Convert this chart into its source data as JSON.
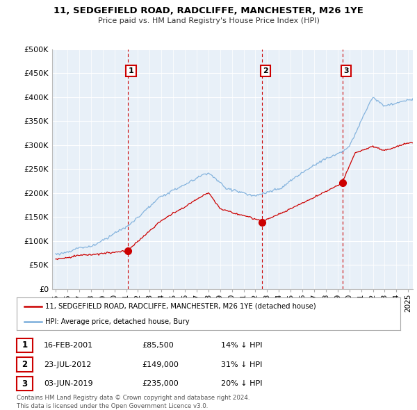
{
  "title": "11, SEDGEFIELD ROAD, RADCLIFFE, MANCHESTER, M26 1YE",
  "subtitle": "Price paid vs. HM Land Registry's House Price Index (HPI)",
  "ylabel_ticks": [
    "£0",
    "£50K",
    "£100K",
    "£150K",
    "£200K",
    "£250K",
    "£300K",
    "£350K",
    "£400K",
    "£450K",
    "£500K"
  ],
  "ytick_vals": [
    0,
    50000,
    100000,
    150000,
    200000,
    250000,
    300000,
    350000,
    400000,
    450000,
    500000
  ],
  "xlim_start": 1994.7,
  "xlim_end": 2025.4,
  "ylim": [
    0,
    500000
  ],
  "sale_color": "#cc0000",
  "hpi_color": "#7aaddb",
  "plot_bg": "#e8f0f8",
  "transactions": [
    {
      "num": 1,
      "date": "16-FEB-2001",
      "price": 85500,
      "pct": "14% ↓ HPI",
      "year": 2001.12
    },
    {
      "num": 2,
      "date": "23-JUL-2012",
      "price": 149000,
      "pct": "31% ↓ HPI",
      "year": 2012.55
    },
    {
      "num": 3,
      "date": "03-JUN-2019",
      "price": 235000,
      "pct": "20% ↓ HPI",
      "year": 2019.42
    }
  ],
  "legend_text_1": "11, SEDGEFIELD ROAD, RADCLIFFE, MANCHESTER, M26 1YE (detached house)",
  "legend_text_2": "HPI: Average price, detached house, Bury",
  "footer_line1": "Contains HM Land Registry data © Crown copyright and database right 2024.",
  "footer_line2": "This data is licensed under the Open Government Licence v3.0.",
  "table_rows": [
    [
      1,
      "16-FEB-2001",
      "£85,500",
      "14% ↓ HPI"
    ],
    [
      2,
      "23-JUL-2012",
      "£149,000",
      "31% ↓ HPI"
    ],
    [
      3,
      "03-JUN-2019",
      "£235,000",
      "20% ↓ HPI"
    ]
  ]
}
